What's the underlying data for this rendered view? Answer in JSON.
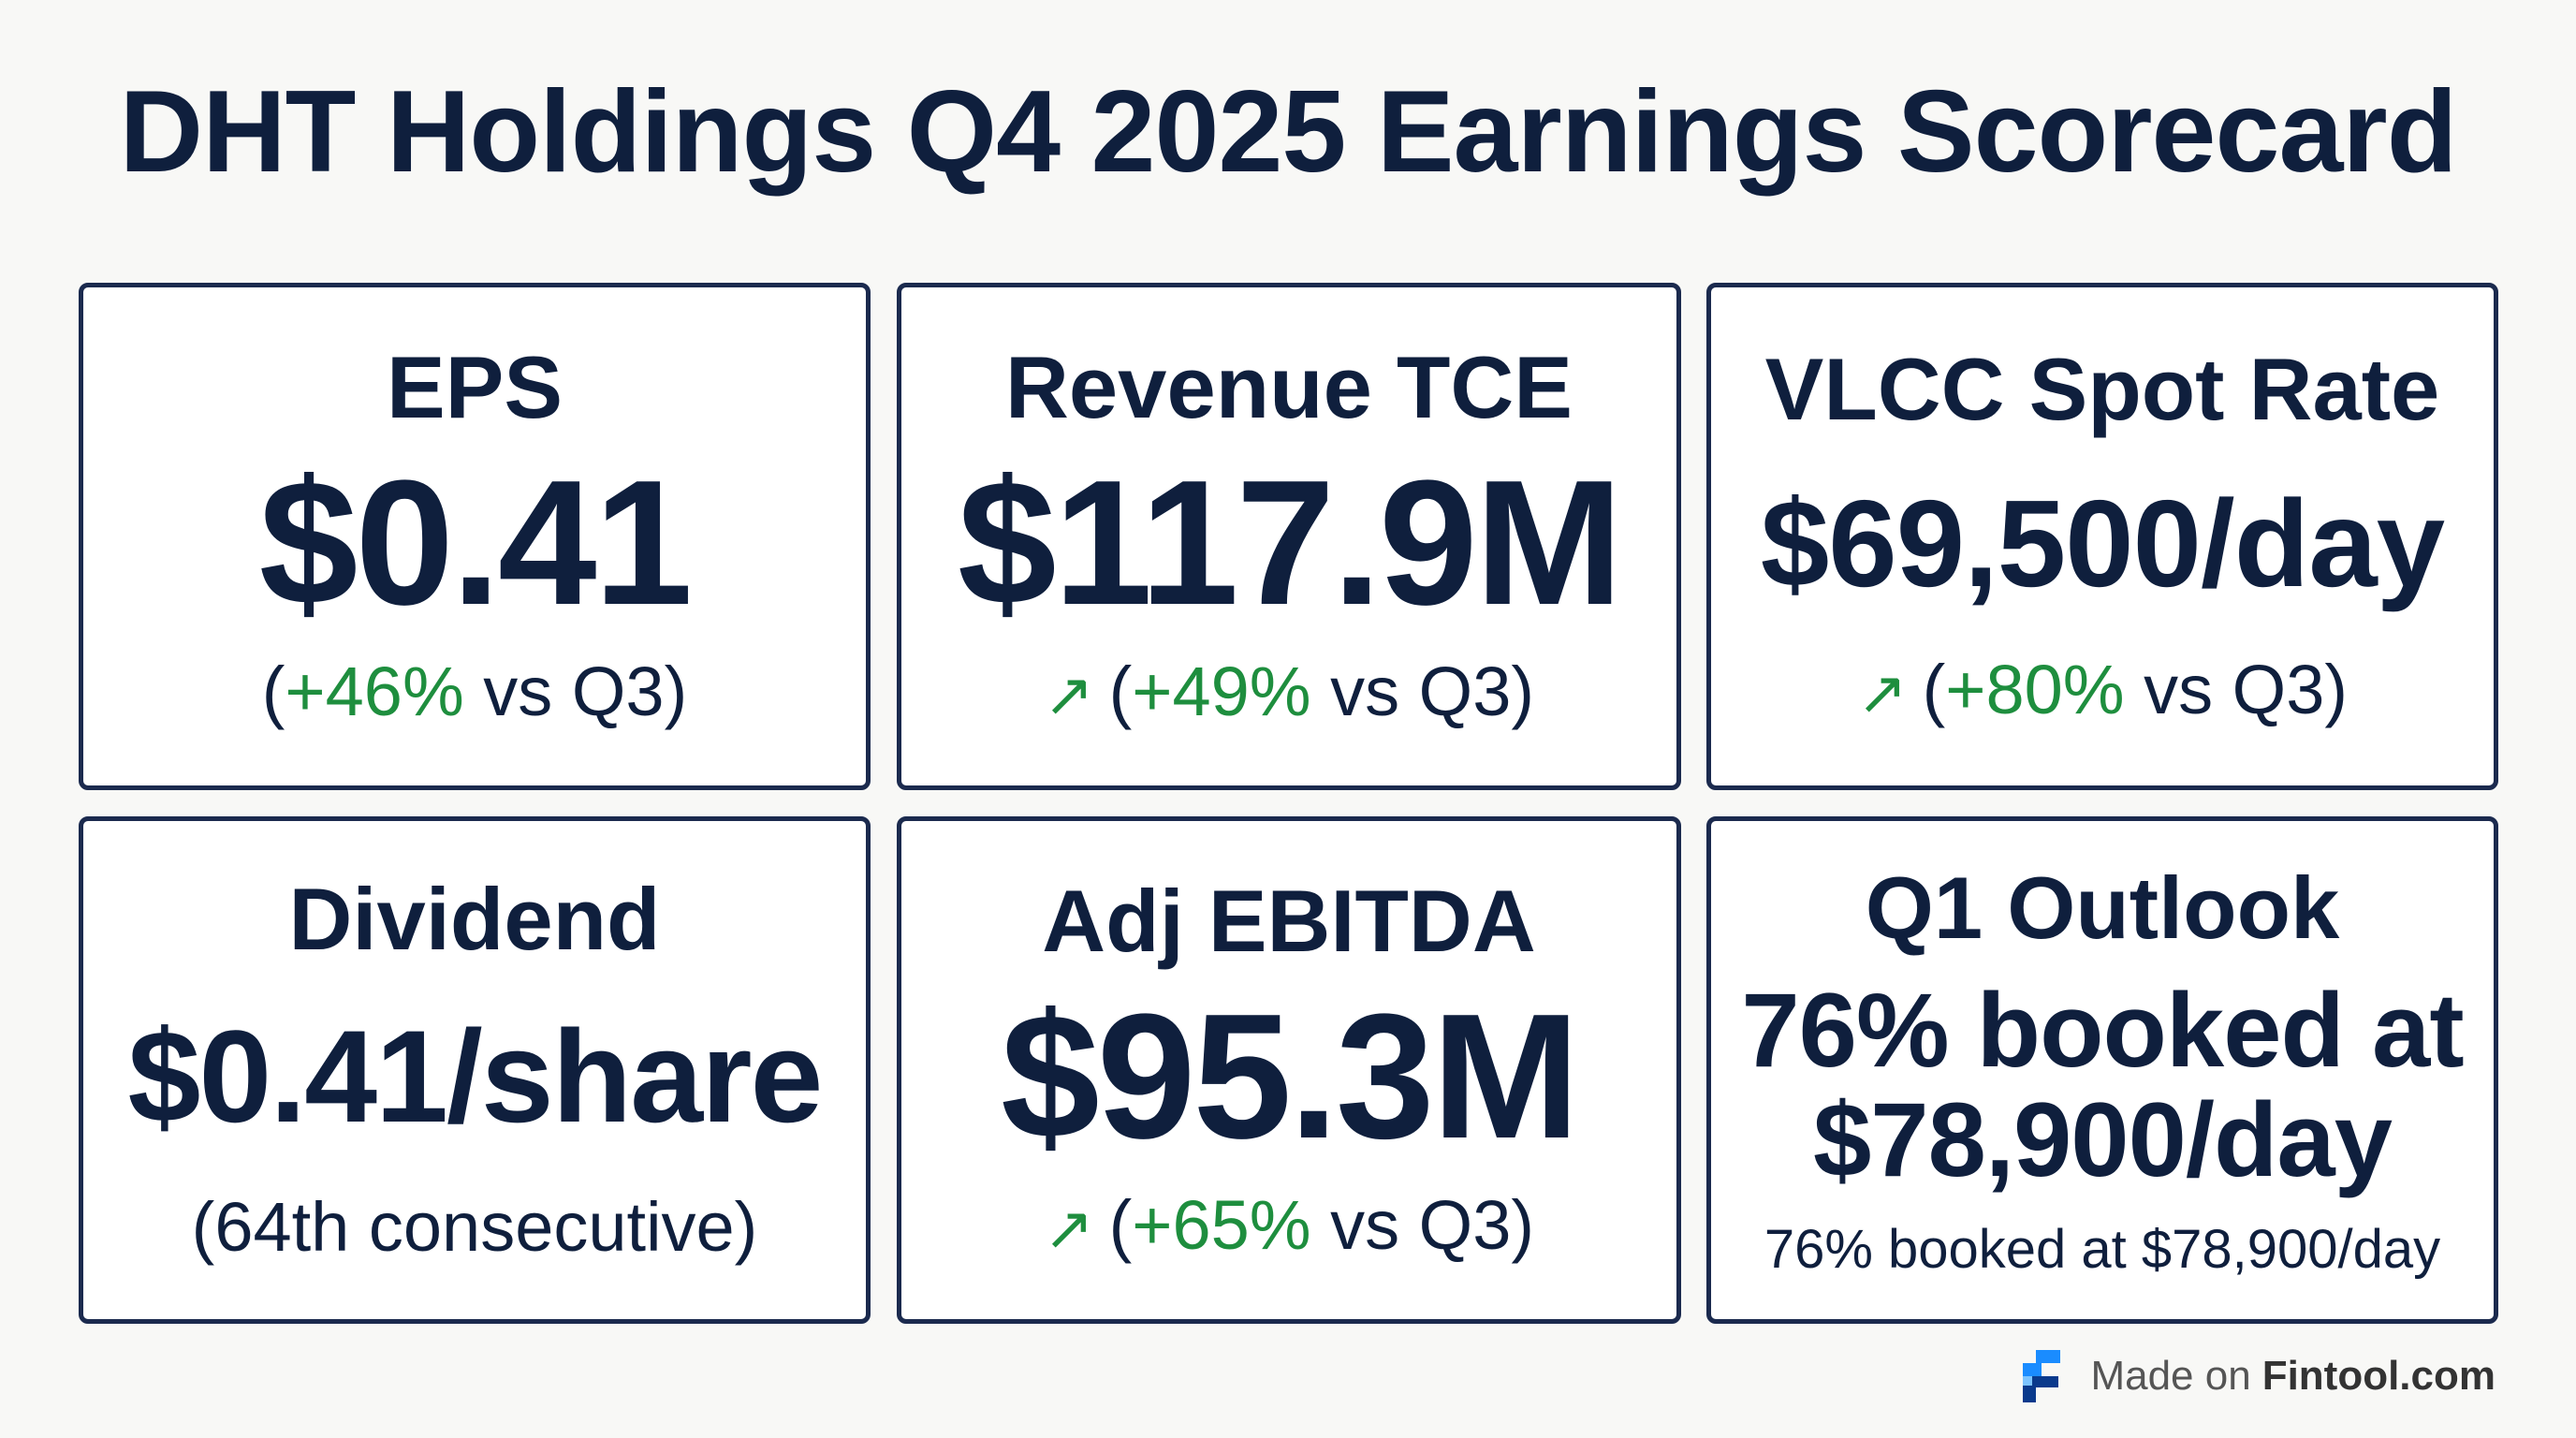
{
  "title": "DHT Holdings Q4 2025 Earnings Scorecard",
  "cards": [
    {
      "label": "EPS",
      "value": "$0.41",
      "open": "(",
      "change": "+46%",
      "rest": " vs Q3)",
      "arrow": ""
    },
    {
      "label": "Revenue TCE",
      "value": "$117.9M",
      "open": "(",
      "change": "+49%",
      "rest": " vs Q3)",
      "arrow": "↗"
    },
    {
      "label": "VLCC Spot Rate",
      "value": "$69,500/day",
      "open": "(",
      "change": "+80%",
      "rest": " vs Q3)",
      "arrow": "↗"
    },
    {
      "label": "Dividend",
      "value": "$0.41/share",
      "note": "(64th consecutive)"
    },
    {
      "label": "Adj EBITDA",
      "value": "$95.3M",
      "open": "(",
      "change": "+65%",
      "rest": " vs Q3)",
      "arrow": "↗"
    },
    {
      "label": "Q1 Outlook",
      "value_line1": "76% booked at",
      "value_line2": "$78,900/day",
      "note": "76% booked at $78,900/day"
    }
  ],
  "footer": {
    "prefix": "Made on",
    "brand": "Fintool.com"
  },
  "colors": {
    "navy": "#0f1f3d",
    "green": "#1e8e3e",
    "logo_blue": "#1a8cff",
    "logo_dark": "#0a3a8c"
  }
}
